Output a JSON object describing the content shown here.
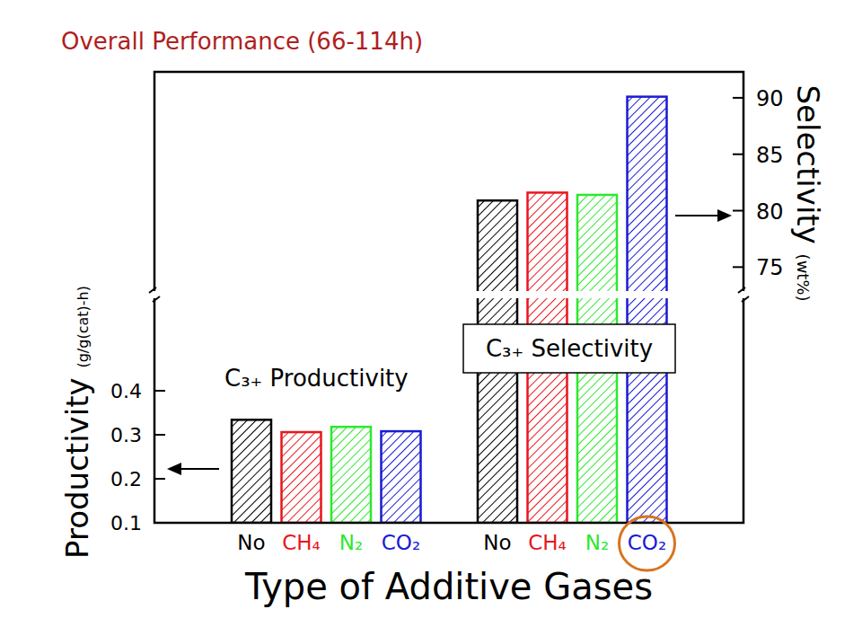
{
  "chart_data": {
    "type": "bar",
    "title": "Overall Performance (66-114h)",
    "xlabel": "Type of Additive Gases",
    "ylabel": "Productivity",
    "ylabel_units": "(g/g(cat)-h)",
    "y2label": "Selectivity",
    "y2label_units": "(wt%)",
    "categories": [
      "No",
      "CH₄",
      "N₂",
      "CO₂"
    ],
    "series": [
      {
        "name": "C₃₊ Productivity",
        "axis": "y",
        "values": [
          0.334,
          0.306,
          0.318,
          0.308
        ],
        "colors": [
          "#000000",
          "#e8161e",
          "#2ee82e",
          "#1a1ad4"
        ]
      },
      {
        "name": "C₃₊ Selectivity",
        "axis": "y2",
        "values": [
          80.9,
          81.6,
          81.4,
          90.1
        ],
        "colors": [
          "#000000",
          "#e8161e",
          "#2ee82e",
          "#1a1ad4"
        ]
      }
    ],
    "ylim": [
      0.1,
      0.6
    ],
    "yticks": [
      0.1,
      0.2,
      0.3,
      0.4
    ],
    "y2lim": [
      72.4,
      92.3
    ],
    "y2ticks": [
      75,
      80,
      85,
      90
    ],
    "grid": false
  }
}
